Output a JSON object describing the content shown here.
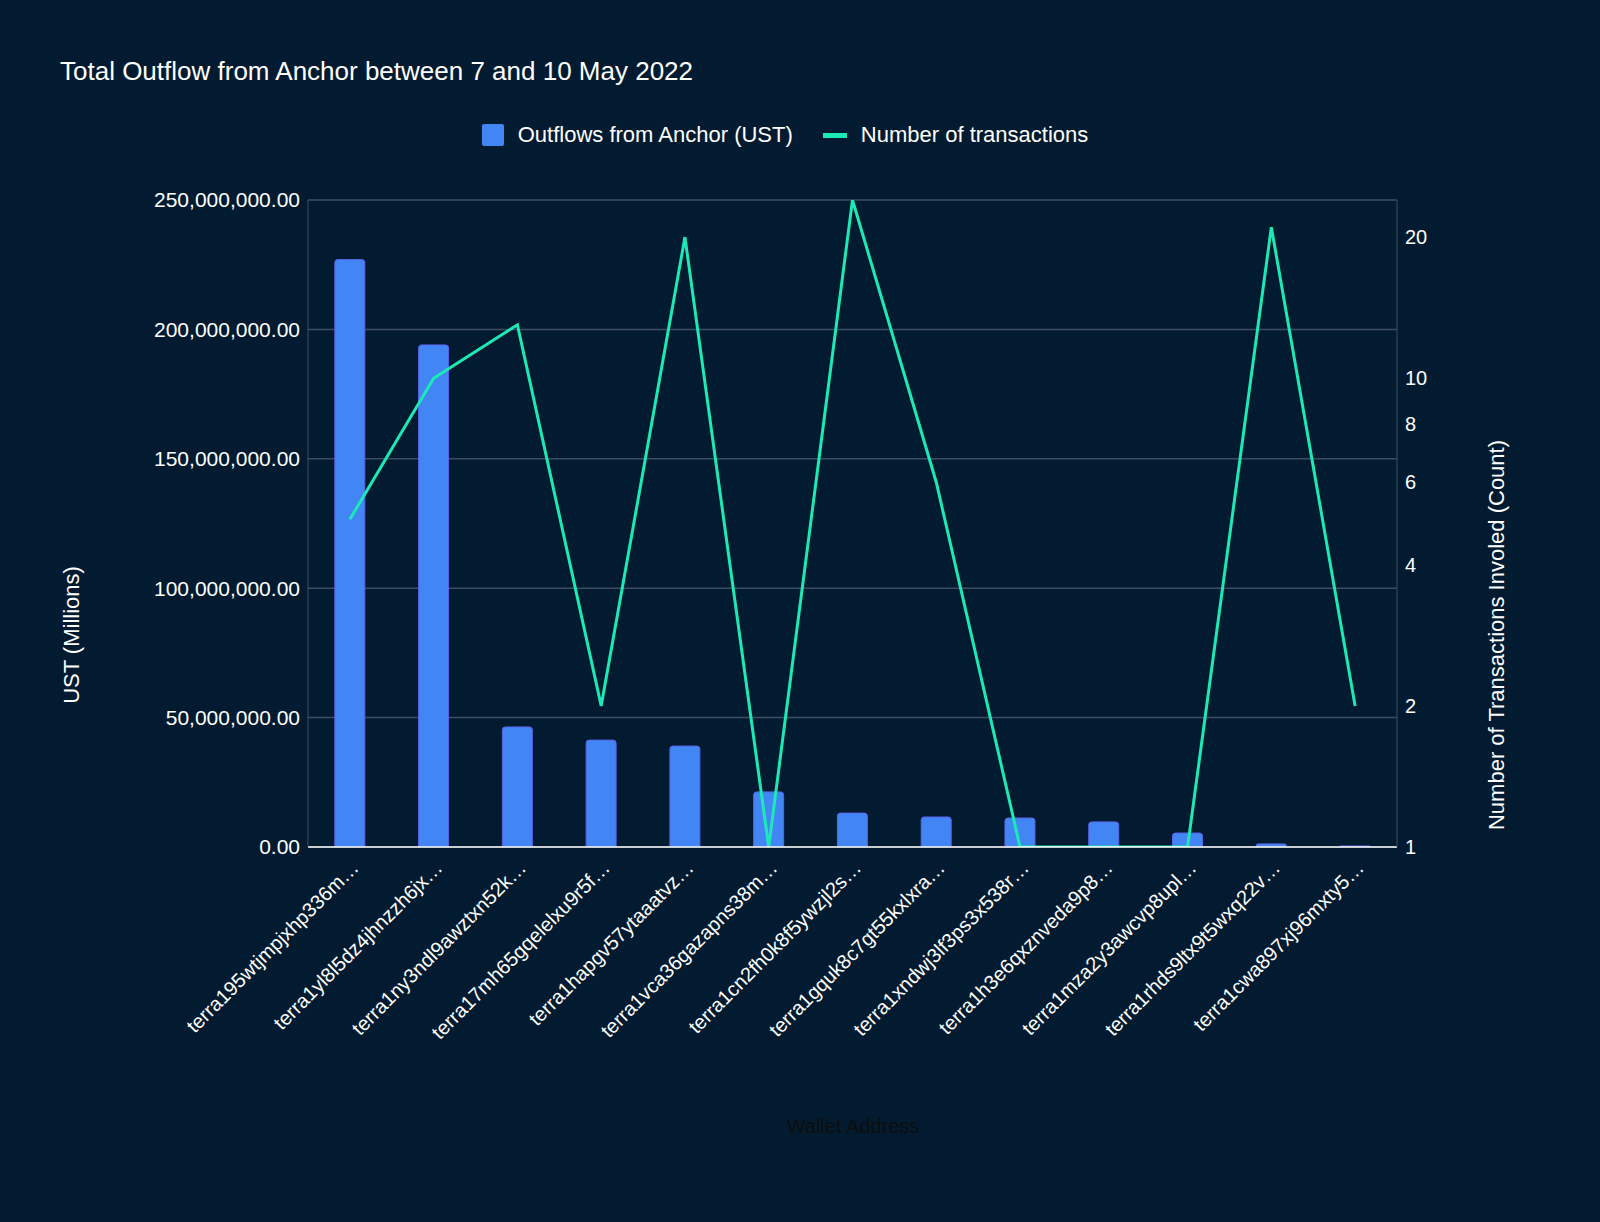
{
  "chart_data": {
    "type": "bar",
    "title": "Total Outflow from Anchor between 7 and 10 May 2022",
    "x_label": "Wallet Address",
    "y_label": "UST (Millions)",
    "y2_label": "Number of Transactions Involed (Count)",
    "categories": [
      "terra195wtjmpjxhp336m…",
      "terra1yl8l5dz4jhnzzh6jx…",
      "terra1ny3ndl9awztxn52k…",
      "terra17mh65gqelelxu9r5f…",
      "terra1hapgv57ytaaatvz…",
      "terra1vca36gazapns38m…",
      "terra1cn2fh0k8f5ywzjl2s…",
      "terra1gquk8c7gt55kxlxra…",
      "terra1xndwj3lf3ps3x538r…",
      "terra1h3e6qxznveda9p8…",
      "terra1mza2y3awcvp8upl…",
      "terra1rhds9ltx9t5wxq22v…",
      "terra1cwa897xj96mxty5…"
    ],
    "series": [
      {
        "name": "Outflows from Anchor (UST)",
        "type": "bar",
        "color": "#4285f4",
        "values": [
          227000000,
          194000000,
          46400000,
          41300000,
          39000000,
          21300000,
          13100000,
          11600000,
          11200000,
          9700000,
          5400000,
          1200000,
          400000
        ]
      },
      {
        "name": "Number of transactions",
        "type": "line",
        "color": "#1de9b6",
        "axis": "y2",
        "values": [
          5,
          10,
          13,
          2,
          20,
          1,
          24,
          6,
          1,
          1,
          1,
          21,
          2
        ]
      }
    ],
    "ylim": [
      0,
      250000000
    ],
    "yticks": [
      {
        "value": 0,
        "label": "0.00"
      },
      {
        "value": 50000000,
        "label": "50,000,000.00"
      },
      {
        "value": 100000000,
        "label": "100,000,000.00"
      },
      {
        "value": 150000000,
        "label": "150,000,000.00"
      },
      {
        "value": 200000000,
        "label": "200,000,000.00"
      },
      {
        "value": 250000000,
        "label": "250,000,000.00"
      }
    ],
    "y2lim": [
      1,
      24
    ],
    "y2ticks": [
      1,
      2,
      4,
      6,
      8,
      10,
      20
    ],
    "log": "y2",
    "grid": true,
    "legend": "top"
  }
}
